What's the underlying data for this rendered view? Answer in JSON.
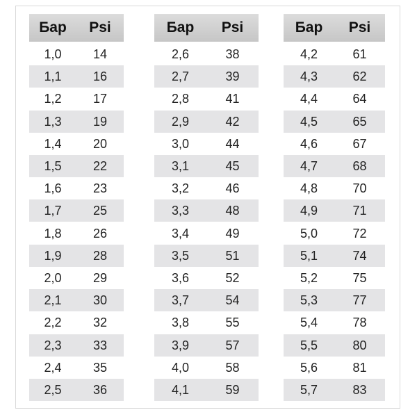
{
  "tables": [
    {
      "header": [
        "Бар",
        "Psi"
      ],
      "rows": [
        [
          "1,0",
          "14"
        ],
        [
          "1,1",
          "16"
        ],
        [
          "1,2",
          "17"
        ],
        [
          "1,3",
          "19"
        ],
        [
          "1,4",
          "20"
        ],
        [
          "1,5",
          "22"
        ],
        [
          "1,6",
          "23"
        ],
        [
          "1,7",
          "25"
        ],
        [
          "1,8",
          "26"
        ],
        [
          "1,9",
          "28"
        ],
        [
          "2,0",
          "29"
        ],
        [
          "2,1",
          "30"
        ],
        [
          "2,2",
          "32"
        ],
        [
          "2,3",
          "33"
        ],
        [
          "2,4",
          "35"
        ],
        [
          "2,5",
          "36"
        ]
      ]
    },
    {
      "header": [
        "Бар",
        "Psi"
      ],
      "rows": [
        [
          "2,6",
          "38"
        ],
        [
          "2,7",
          "39"
        ],
        [
          "2,8",
          "41"
        ],
        [
          "2,9",
          "42"
        ],
        [
          "3,0",
          "44"
        ],
        [
          "3,1",
          "45"
        ],
        [
          "3,2",
          "46"
        ],
        [
          "3,3",
          "48"
        ],
        [
          "3,4",
          "49"
        ],
        [
          "3,5",
          "51"
        ],
        [
          "3,6",
          "52"
        ],
        [
          "3,7",
          "54"
        ],
        [
          "3,8",
          "55"
        ],
        [
          "3,9",
          "57"
        ],
        [
          "4,0",
          "58"
        ],
        [
          "4,1",
          "59"
        ]
      ]
    },
    {
      "header": [
        "Бар",
        "Psi"
      ],
      "rows": [
        [
          "4,2",
          "61"
        ],
        [
          "4,3",
          "62"
        ],
        [
          "4,4",
          "64"
        ],
        [
          "4,5",
          "65"
        ],
        [
          "4,6",
          "67"
        ],
        [
          "4,7",
          "68"
        ],
        [
          "4,8",
          "70"
        ],
        [
          "4,9",
          "71"
        ],
        [
          "5,0",
          "72"
        ],
        [
          "5,1",
          "74"
        ],
        [
          "5,2",
          "75"
        ],
        [
          "5,3",
          "77"
        ],
        [
          "5,4",
          "78"
        ],
        [
          "5,5",
          "80"
        ],
        [
          "5,6",
          "81"
        ],
        [
          "5,7",
          "83"
        ]
      ]
    }
  ]
}
